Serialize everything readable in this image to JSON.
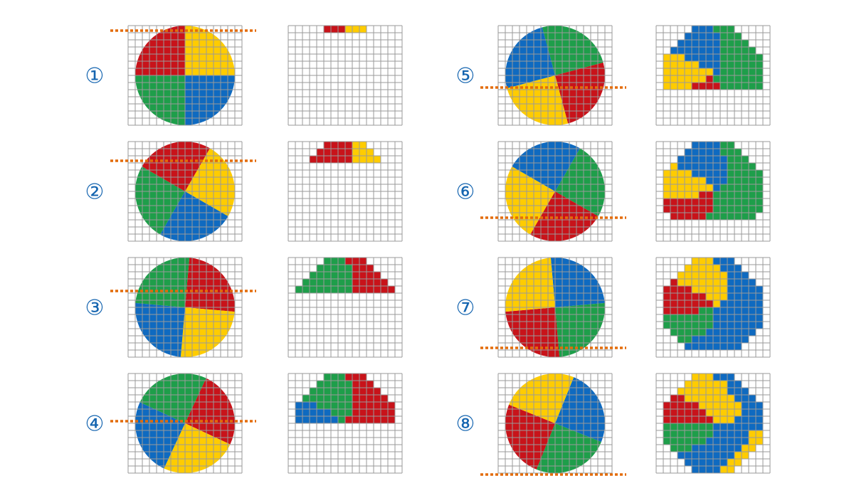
{
  "colors": {
    "red": "#C8131A",
    "yellow": "#FFCC00",
    "green": "#1E9E4A",
    "blue": "#0F6AC0",
    "grid": "#9a9a9a",
    "scanline": "#E36C0A",
    "number": "#1565B0"
  },
  "grid": {
    "cols": 16,
    "rows": 14
  },
  "panels": [
    {
      "label": "①",
      "rotation": 0,
      "scan_row": 0.7,
      "order": [
        "yellow",
        "blue",
        "green",
        "red"
      ]
    },
    {
      "label": "②",
      "rotation": 30,
      "scan_row": 2.7,
      "order": [
        "yellow",
        "blue",
        "green",
        "red"
      ]
    },
    {
      "label": "③",
      "rotation": 5,
      "scan_row": 4.7,
      "order": [
        "red",
        "yellow",
        "blue",
        "green"
      ]
    },
    {
      "label": "④",
      "rotation": 25,
      "scan_row": 6.7,
      "order": [
        "red",
        "yellow",
        "blue",
        "green"
      ]
    },
    {
      "label": "⑤",
      "rotation": -15,
      "scan_row": 8.7,
      "order": [
        "green",
        "red",
        "yellow",
        "blue"
      ]
    },
    {
      "label": "⑥",
      "rotation": 30,
      "scan_row": 10.7,
      "order": [
        "green",
        "red",
        "yellow",
        "blue"
      ]
    },
    {
      "label": "⑦",
      "rotation": -5,
      "scan_row": 12.7,
      "order": [
        "blue",
        "green",
        "red",
        "yellow"
      ]
    },
    {
      "label": "⑧",
      "rotation": 22,
      "scan_row": 14.2,
      "order": [
        "blue",
        "green",
        "red",
        "yellow"
      ]
    }
  ]
}
